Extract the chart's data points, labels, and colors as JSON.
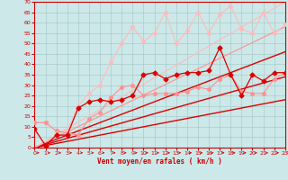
{
  "bg_color": "#cce8e8",
  "grid_color": "#aacccc",
  "x_label": "Vent moyen/en rafales ( km/h )",
  "y_ticks": [
    0,
    5,
    10,
    15,
    20,
    25,
    30,
    35,
    40,
    45,
    50,
    55,
    60,
    65,
    70
  ],
  "x_ticks": [
    0,
    1,
    2,
    3,
    4,
    5,
    6,
    7,
    8,
    9,
    10,
    11,
    12,
    13,
    14,
    15,
    16,
    17,
    18,
    19,
    20,
    21,
    22,
    23
  ],
  "xlim": [
    0,
    23
  ],
  "ylim": [
    0,
    70
  ],
  "series": [
    {
      "x": [
        0,
        1,
        2,
        3,
        4,
        5,
        6,
        7,
        8,
        9,
        10,
        11,
        12,
        13,
        14,
        15,
        16,
        17,
        18,
        19,
        20,
        21,
        22,
        23
      ],
      "y": [
        9,
        1,
        6,
        6,
        19,
        22,
        23,
        22,
        23,
        25,
        35,
        36,
        33,
        35,
        36,
        36,
        37,
        48,
        35,
        25,
        35,
        32,
        36,
        36
      ],
      "color": "#dd0000",
      "marker": "D",
      "lw": 0.9,
      "ms": 2.5,
      "zorder": 5
    },
    {
      "x": [
        0,
        1,
        2,
        3,
        4,
        5,
        6,
        7,
        8,
        9,
        10,
        11,
        12,
        13,
        14,
        15,
        16,
        17,
        18,
        19,
        20,
        21,
        22,
        23
      ],
      "y": [
        12,
        12,
        8,
        7,
        6,
        14,
        17,
        24,
        29,
        30,
        25,
        26,
        26,
        26,
        27,
        29,
        28,
        33,
        35,
        27,
        26,
        26,
        33,
        36
      ],
      "color": "#ff9090",
      "marker": "o",
      "lw": 0.8,
      "ms": 2.5,
      "zorder": 4
    },
    {
      "x": [
        0,
        1,
        2,
        3,
        4,
        5,
        6,
        7,
        8,
        9,
        10,
        11,
        12,
        13,
        14,
        15,
        16,
        17,
        18,
        19,
        20,
        21,
        22,
        23
      ],
      "y": [
        12,
        12,
        8,
        8,
        20,
        26,
        30,
        41,
        50,
        58,
        51,
        55,
        65,
        50,
        56,
        65,
        55,
        64,
        68,
        57,
        55,
        65,
        55,
        59
      ],
      "color": "#ffbbbb",
      "marker": "o",
      "lw": 0.8,
      "ms": 2.5,
      "zorder": 3
    },
    {
      "x": [
        0,
        23
      ],
      "y": [
        0,
        23
      ],
      "color": "#dd0000",
      "marker": null,
      "lw": 1.0,
      "ms": 0,
      "zorder": 2
    },
    {
      "x": [
        0,
        23
      ],
      "y": [
        0,
        34
      ],
      "color": "#dd0000",
      "marker": null,
      "lw": 1.0,
      "ms": 0,
      "zorder": 2
    },
    {
      "x": [
        0,
        23
      ],
      "y": [
        0,
        46
      ],
      "color": "#dd0000",
      "marker": null,
      "lw": 1.0,
      "ms": 0,
      "zorder": 2
    },
    {
      "x": [
        0,
        23
      ],
      "y": [
        0,
        58
      ],
      "color": "#ff9090",
      "marker": null,
      "lw": 0.8,
      "ms": 0,
      "zorder": 2
    },
    {
      "x": [
        0,
        23
      ],
      "y": [
        0,
        70
      ],
      "color": "#ffbbbb",
      "marker": null,
      "lw": 0.8,
      "ms": 0,
      "zorder": 2
    }
  ]
}
